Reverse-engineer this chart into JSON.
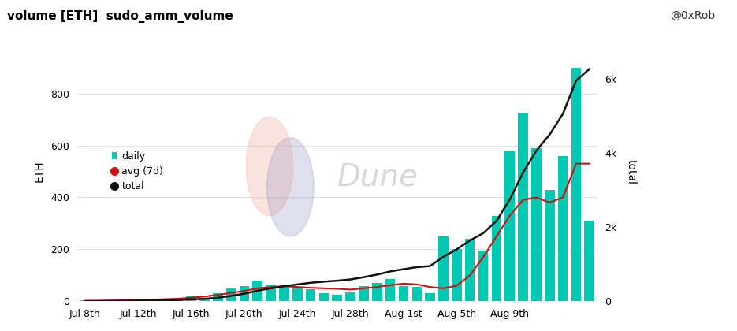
{
  "title": "volume [ETH]  sudo_amm_volume",
  "ylabel_left": "ETH",
  "ylabel_right": "total",
  "bar_color": "#00c9b1",
  "avg_color": "#cc1111",
  "total_color": "#111111",
  "background_color": "#ffffff",
  "x_labels": [
    "Jul 8th",
    "Jul 12th",
    "Jul 16th",
    "Jul 20th",
    "Jul 24th",
    "Jul 28th",
    "Aug 1st",
    "Aug 5th",
    "Aug 9th"
  ],
  "daily_values": [
    3,
    2,
    4,
    3,
    5,
    4,
    8,
    6,
    18,
    12,
    30,
    50,
    60,
    80,
    65,
    55,
    50,
    45,
    30,
    25,
    35,
    60,
    70,
    85,
    60,
    55,
    30,
    250,
    200,
    240,
    195,
    330,
    580,
    725,
    590,
    430,
    560,
    900,
    310
  ],
  "avg7d_values": [
    2,
    2,
    3,
    4,
    5,
    6,
    8,
    10,
    14,
    18,
    25,
    32,
    40,
    50,
    55,
    58,
    55,
    52,
    50,
    48,
    45,
    50,
    55,
    62,
    68,
    65,
    55,
    50,
    60,
    100,
    170,
    250,
    330,
    390,
    400,
    380,
    400,
    530,
    530
  ],
  "total_values": [
    3,
    5,
    9,
    12,
    17,
    21,
    29,
    35,
    53,
    65,
    95,
    145,
    205,
    285,
    350,
    405,
    455,
    500,
    530,
    555,
    590,
    650,
    720,
    805,
    865,
    920,
    950,
    1200,
    1400,
    1640,
    1835,
    2165,
    2745,
    3470,
    4060,
    4490,
    5050,
    5950,
    6260
  ],
  "ylim_left": [
    0,
    1000
  ],
  "ylim_right": [
    0,
    7000
  ],
  "yticks_left": [
    0,
    200,
    400,
    600,
    800
  ],
  "yticks_right": [
    0,
    2000,
    4000,
    6000
  ],
  "ytick_labels_right": [
    "0",
    "2k",
    "4k",
    "6k"
  ],
  "watermark_text": "Dune",
  "attribution": "@0xRob",
  "n_bars": 39,
  "bar_width": 0.75,
  "x_tick_positions": [
    0,
    4,
    8,
    12,
    16,
    20,
    24,
    28,
    32
  ]
}
